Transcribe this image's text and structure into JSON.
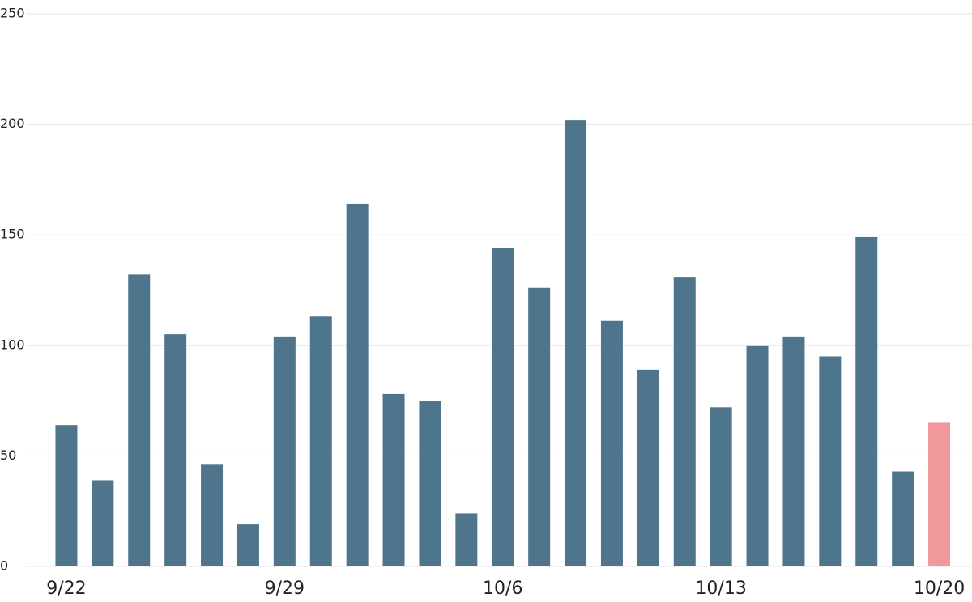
{
  "chart_data": {
    "type": "bar",
    "categories": [
      "9/22",
      null,
      null,
      null,
      null,
      null,
      "9/29",
      null,
      null,
      null,
      null,
      null,
      "10/6",
      null,
      null,
      null,
      null,
      null,
      "10/13",
      null,
      null,
      null,
      null,
      null,
      "10/20"
    ],
    "values": [
      64,
      39,
      132,
      105,
      46,
      19,
      104,
      113,
      164,
      78,
      75,
      24,
      144,
      126,
      202,
      111,
      89,
      131,
      72,
      100,
      104,
      95,
      149,
      43,
      65
    ],
    "colors": [
      "#4f758c",
      "#4f758c",
      "#4f758c",
      "#4f758c",
      "#4f758c",
      "#4f758c",
      "#4f758c",
      "#4f758c",
      "#4f758c",
      "#4f758c",
      "#4f758c",
      "#4f758c",
      "#4f758c",
      "#4f758c",
      "#4f758c",
      "#4f758c",
      "#4f758c",
      "#4f758c",
      "#4f758c",
      "#4f758c",
      "#4f758c",
      "#4f758c",
      "#4f758c",
      "#4f758c",
      "#f0989a"
    ],
    "ylim": [
      0,
      250
    ],
    "yticks": [
      0,
      50,
      100,
      150,
      200,
      250
    ],
    "grid": true
  }
}
